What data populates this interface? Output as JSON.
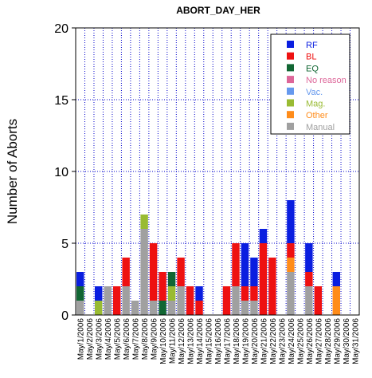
{
  "chart_data": {
    "type": "bar",
    "stacked": true,
    "title": "ABORT_DAY_HER",
    "xlabel": "",
    "ylabel": "Number of Aborts",
    "ylim": [
      0,
      20
    ],
    "yticks": [
      "0",
      "5",
      "10",
      "15",
      "20"
    ],
    "grid": true,
    "legend_position": "top-right",
    "categories": [
      "May/1/2006",
      "May/2/2006",
      "May/3/2006",
      "May/4/2006",
      "May/5/2006",
      "May/6/2006",
      "May/7/2006",
      "May/8/2006",
      "May/9/2006",
      "May/10/2006",
      "May/11/2006",
      "May/12/2006",
      "May/13/2006",
      "May/14/2006",
      "May/15/2006",
      "May/16/2006",
      "May/17/2006",
      "May/18/2006",
      "May/19/2006",
      "May/20/2006",
      "May/21/2006",
      "May/22/2006",
      "May/23/2006",
      "May/24/2006",
      "May/25/2006",
      "May/26/2006",
      "May/27/2006",
      "May/28/2006",
      "May/29/2006",
      "May/30/2006",
      "May/31/2006"
    ],
    "series": [
      {
        "name": "Manual",
        "color": "#a0a0a0",
        "values": [
          1,
          0,
          0,
          2,
          0,
          2,
          1,
          6,
          1,
          0,
          1,
          2,
          0,
          0,
          0,
          0,
          0,
          2,
          1,
          1,
          0,
          0,
          0,
          3,
          0,
          2,
          0,
          0,
          0,
          0,
          0
        ]
      },
      {
        "name": "Other",
        "color": "#ff8c1a",
        "values": [
          0,
          0,
          0,
          0,
          0,
          0,
          0,
          0,
          0,
          0,
          0,
          0,
          0,
          0,
          0,
          0,
          0,
          0,
          0,
          0,
          0,
          0,
          0,
          1,
          0,
          0,
          0,
          0,
          2,
          0,
          0
        ]
      },
      {
        "name": "Mag.",
        "color": "#99bb33",
        "values": [
          0,
          0,
          1,
          0,
          0,
          0,
          0,
          1,
          0,
          0,
          1,
          0,
          0,
          0,
          0,
          0,
          0,
          0,
          0,
          0,
          0,
          0,
          0,
          0,
          0,
          0,
          0,
          0,
          0,
          0,
          0
        ]
      },
      {
        "name": "Vac.",
        "color": "#6699ee",
        "values": [
          0,
          0,
          0,
          0,
          0,
          0,
          0,
          0,
          0,
          0,
          0,
          0,
          0,
          0,
          0,
          0,
          0,
          0,
          0,
          0,
          0,
          0,
          0,
          0,
          0,
          0,
          0,
          0,
          0,
          0,
          0
        ]
      },
      {
        "name": "No reason",
        "color": "#dd6699",
        "values": [
          0,
          0,
          0,
          0,
          0,
          0,
          0,
          0,
          0,
          0,
          0,
          0,
          0,
          0,
          0,
          0,
          0,
          0,
          0,
          0,
          0,
          0,
          0,
          0,
          0,
          0,
          0,
          0,
          0,
          0,
          0
        ]
      },
      {
        "name": "EQ",
        "color": "#116633",
        "values": [
          1,
          0,
          0,
          0,
          0,
          0,
          0,
          0,
          0,
          1,
          1,
          0,
          0,
          0,
          0,
          0,
          0,
          0,
          0,
          0,
          0,
          0,
          0,
          0,
          0,
          0,
          0,
          0,
          0,
          0,
          0
        ]
      },
      {
        "name": "BL",
        "color": "#ee1111",
        "values": [
          0,
          0,
          0,
          0,
          2,
          2,
          0,
          0,
          4,
          2,
          0,
          2,
          2,
          1,
          0,
          0,
          2,
          3,
          1,
          1,
          5,
          4,
          0,
          1,
          0,
          1,
          2,
          0,
          0,
          0,
          0
        ]
      },
      {
        "name": "RF",
        "color": "#0a1ee0",
        "values": [
          1,
          0,
          1,
          0,
          0,
          0,
          0,
          0,
          0,
          0,
          0,
          0,
          0,
          1,
          0,
          0,
          0,
          0,
          3,
          2,
          1,
          0,
          0,
          3,
          0,
          2,
          0,
          0,
          1,
          0,
          0
        ]
      }
    ],
    "legend_order": [
      "RF",
      "BL",
      "EQ",
      "No reason",
      "Vac.",
      "Mag.",
      "Other",
      "Manual"
    ]
  }
}
